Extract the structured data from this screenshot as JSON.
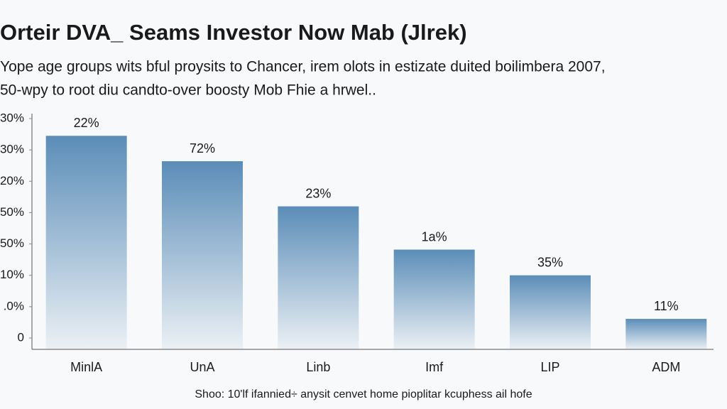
{
  "chart_data": {
    "type": "bar",
    "title": "Orteir DVA_ Seams Investor Now Mab (Jlrek)",
    "subtitle": [
      "Yope age groups wits bful proysits to Chancer, irem olots in estizate duited boilimbera 2007,",
      "50-wpy to root diu candto-over boosty Mob Fhie a hrwel.."
    ],
    "source": "Shoo: 10'lf ifannied÷ anysit cenvet home pioplitar kcuphess ail hofe",
    "categories": [
      "MinlA",
      "UnA",
      "Linb",
      "Imf",
      "LIP",
      "ADM"
    ],
    "values": [
      64.5,
      56.4,
      42,
      28.2,
      20,
      6.1
    ],
    "annotations": [
      "22%",
      "72%",
      "23%",
      "1a%",
      "35%",
      "11%"
    ],
    "color": "#5b8db8",
    "ylim": [
      0,
      70
    ],
    "yticks": [
      0,
      {
        "value": 10,
        "label": ".0%"
      },
      {
        "value": 20,
        "label": "10%"
      },
      {
        "value": 30,
        "label": "50%"
      },
      {
        "value": 40,
        "label": "50%"
      },
      {
        "value": 50,
        "label": "20%"
      },
      {
        "value": 60,
        "label": "30%"
      },
      {
        "value": 70,
        "label": "30%"
      }
    ]
  }
}
